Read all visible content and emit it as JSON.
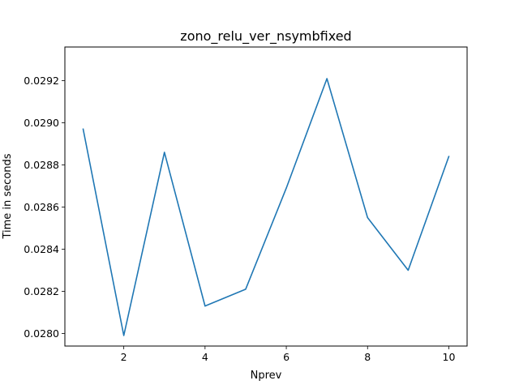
{
  "chart_data": {
    "type": "line",
    "title": "zono_relu_ver_nsymbfixed",
    "xlabel": "Nprev",
    "ylabel": "Time in seconds",
    "xlim": [
      0.55,
      10.45
    ],
    "ylim": [
      0.02794,
      0.02936
    ],
    "xticks": [
      2,
      4,
      6,
      8,
      10
    ],
    "xtick_labels": [
      "2",
      "4",
      "6",
      "8",
      "10"
    ],
    "yticks": [
      0.028,
      0.0282,
      0.0284,
      0.0286,
      0.0288,
      0.029,
      0.0292
    ],
    "ytick_labels": [
      "0.0280",
      "0.0282",
      "0.0284",
      "0.0286",
      "0.0288",
      "0.0290",
      "0.0292"
    ],
    "grid": false,
    "series": [
      {
        "color": "#1f77b4",
        "x": [
          1,
          2,
          3,
          4,
          5,
          6,
          7,
          8,
          9,
          10
        ],
        "y": [
          0.02897,
          0.02799,
          0.02886,
          0.02813,
          0.02821,
          0.02869,
          0.02921,
          0.02855,
          0.0283,
          0.02884
        ]
      }
    ]
  }
}
